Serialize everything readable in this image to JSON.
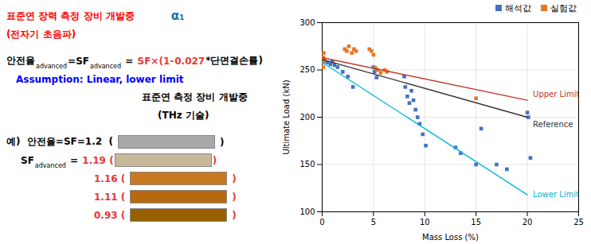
{
  "chart_data": {
    "type": "scatter",
    "xlabel": "Mass Loss (%)",
    "ylabel": "Ultimate Load (kN)",
    "xlim": [
      0,
      25
    ],
    "ylim": [
      100,
      300
    ],
    "xticks": [
      0,
      5,
      10,
      15,
      20,
      25
    ],
    "yticks": [
      100,
      150,
      200,
      250,
      300
    ],
    "grid": true,
    "legend": "upper right",
    "series": [
      {
        "name": "해석값",
        "type": "scatter",
        "marker": "square",
        "color": "#4472c4",
        "x": [
          0.0,
          0.2,
          0.5,
          0.8,
          1.0,
          1.2,
          1.5,
          2.0,
          2.5,
          3.0,
          5.0,
          5.1,
          5.3,
          8.0,
          8.1,
          8.3,
          8.5,
          8.7,
          8.9,
          9.1,
          9.3,
          9.5,
          9.8,
          10.1,
          13.0,
          13.5,
          15.0,
          15.5,
          17.0,
          18.0,
          20.0,
          20.1,
          20.3
        ],
        "values": [
          262,
          260,
          258,
          256,
          259,
          255,
          253,
          248,
          243,
          232,
          253,
          248,
          242,
          243,
          232,
          222,
          215,
          228,
          218,
          208,
          200,
          193,
          182,
          170,
          168,
          162,
          150,
          188,
          150,
          145,
          205,
          200,
          157
        ]
      },
      {
        "name": "실험값",
        "type": "scatter",
        "marker": "square",
        "color": "#e87722",
        "x": [
          0.1,
          0.1,
          0.15,
          0.1,
          2.2,
          2.4,
          2.6,
          2.9,
          3.1,
          3.3,
          4.6,
          4.8,
          5.0,
          5.2,
          5.4,
          5.7,
          6.1,
          6.3,
          15.0
        ],
        "values": [
          258,
          263,
          268,
          253,
          272,
          270,
          275,
          268,
          272,
          270,
          272,
          270,
          266,
          252,
          250,
          247,
          250,
          248,
          220
        ]
      },
      {
        "name": "Upper Limit",
        "type": "line",
        "color": "#c0392b",
        "x": [
          0,
          20
        ],
        "values": [
          263,
          218
        ]
      },
      {
        "name": "Reference",
        "type": "line",
        "color": "#333333",
        "x": [
          0,
          20
        ],
        "values": [
          261,
          200
        ]
      },
      {
        "name": "Lower Limit",
        "type": "line",
        "color": "#00bcd4",
        "x": [
          0,
          20
        ],
        "values": [
          258,
          118
        ]
      }
    ],
    "annotations": [
      [
        {
          "text": "표준연 장력 측정 장비 개발중",
          "color": "red"
        },
        {
          "text": "α₁",
          "color": "#1a6fba"
        }
      ],
      [
        {
          "text": "(전자기 초음파)",
          "color": "red"
        }
      ],
      [
        {
          "text": "안전율",
          "color": "black"
        },
        {
          "text": "advanced",
          "color": "black",
          "type": "subscript"
        },
        {
          "text": "=SF",
          "color": "black"
        },
        {
          "text": "advanced",
          "color": "black",
          "type": "subscript"
        },
        {
          "text": " = ",
          "color": "black"
        },
        {
          "text": "SF×(1-",
          "color": "#e53935"
        },
        {
          "text": "0.027",
          "color": "#e53935"
        },
        {
          "text": "*단면결손률)",
          "color": "black"
        }
      ],
      [
        {
          "text": "Assumption: Linear, lower limit",
          "color": "blue"
        }
      ],
      [
        {
          "text": "표준연 측정 장비 개발중",
          "color": "black"
        }
      ],
      [
        {
          "text": "(THz 기술)",
          "color": "black"
        }
      ],
      [
        {
          "text": "예)  안전율=SF=1.2  (",
          "color": "black"
        },
        {
          "type": "swatch",
          "color": "#a8a8a8"
        },
        {
          "text": ")",
          "color": "black"
        }
      ],
      [
        {
          "text": "SF",
          "color": "black"
        },
        {
          "text": "advanced",
          "color": "black",
          "type": "subscript"
        },
        {
          "text": " = ",
          "color": "black"
        },
        {
          "text": "1.19 (",
          "color": "#e53935"
        },
        {
          "type": "swatch",
          "color": "#c8b89a"
        },
        {
          "text": ")",
          "color": "#e53935"
        }
      ],
      [
        {
          "text": "1.16 (",
          "color": "#e53935"
        },
        {
          "type": "swatch",
          "color": "#c87820"
        },
        {
          "text": ")",
          "color": "#e53935"
        }
      ],
      [
        {
          "text": "1.11 (",
          "color": "#e53935"
        },
        {
          "type": "swatch",
          "color": "#b86810"
        },
        {
          "text": ")",
          "color": "#e53935"
        }
      ],
      [
        {
          "text": "0.93 (",
          "color": "#e53935"
        },
        {
          "type": "swatch",
          "color": "#986000"
        },
        {
          "text": ")",
          "color": "#e53935"
        }
      ]
    ]
  }
}
